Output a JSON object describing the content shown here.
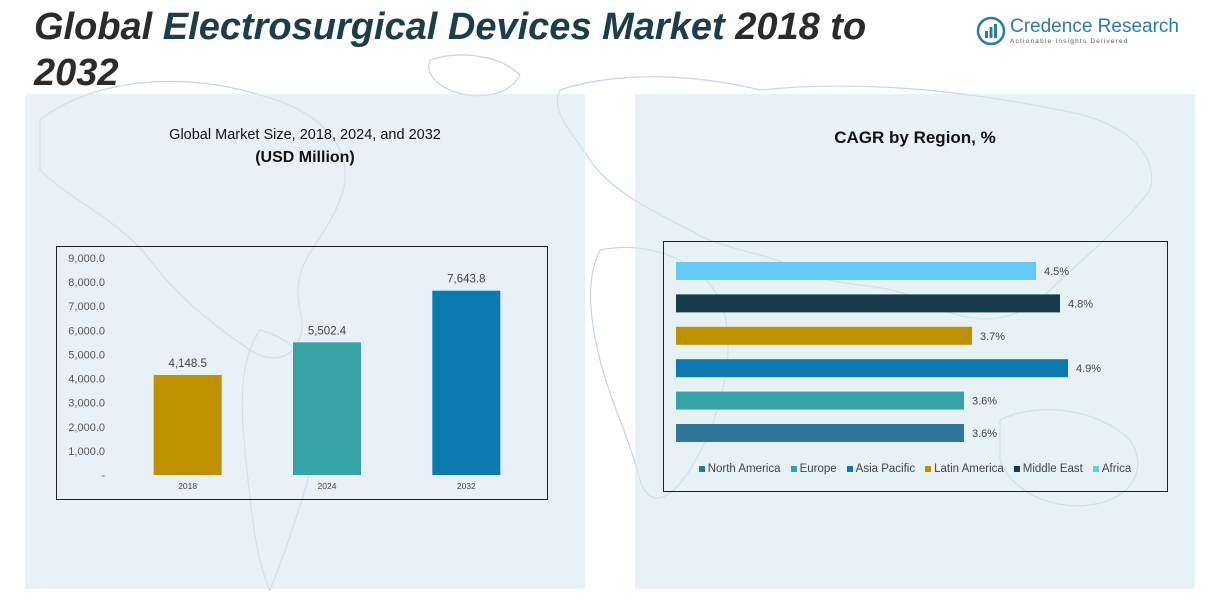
{
  "header": {
    "title_part1": "Global ",
    "title_part2": "Electrosurgical Devices Market",
    "title_part3": " 2018 to 2032"
  },
  "logo": {
    "name": "Credence Research",
    "tagline": "Actionable Insights Delivered",
    "icon": "bar-chart-logo-icon"
  },
  "colors": {
    "bar_2018": "#BF9000",
    "bar_2024": "#36A3A6",
    "bar_2032": "#0B7BAF",
    "north_america": "#2F7698",
    "europe": "#36A3A6",
    "asia_pacific": "#0B7BAF",
    "latin_america": "#BF9000",
    "middle_east": "#173A48",
    "africa": "#66CCF5"
  },
  "chart_data": [
    {
      "type": "bar",
      "title": "Global Market Size, 2018, 2024, and 2032",
      "subtitle": "(USD Million)",
      "categories": [
        "2018",
        "2024",
        "2032"
      ],
      "values": [
        4148.5,
        5502.4,
        7643.8
      ],
      "value_labels": [
        "4,148.5",
        "5,502.4",
        "7,643.8"
      ],
      "ylim": [
        0,
        9000
      ],
      "yticks": [
        0,
        1000,
        2000,
        3000,
        4000,
        5000,
        6000,
        7000,
        8000,
        9000
      ],
      "ytick_labels": [
        "-",
        "1,000.0",
        "2,000.0",
        "3,000.0",
        "4,000.0",
        "5,000.0",
        "6,000.0",
        "7,000.0",
        "8,000.0",
        "9,000.0"
      ],
      "grid": false
    },
    {
      "type": "bar",
      "orientation": "horizontal",
      "title": "CAGR by Region, %",
      "categories": [
        "Africa",
        "Middle East",
        "Latin America",
        "Asia Pacific",
        "Europe",
        "North America"
      ],
      "values": [
        4.5,
        4.8,
        3.7,
        4.9,
        3.6,
        3.6
      ],
      "value_labels": [
        "4.5%",
        "4.8%",
        "3.7%",
        "4.9%",
        "3.6%",
        "3.6%"
      ],
      "xlim": [
        0,
        5.0
      ],
      "legend": [
        "North America",
        "Europe",
        "Asia Pacific",
        "Latin America",
        "Middle East",
        "Africa"
      ],
      "legend_position": "bottom",
      "grid": false
    }
  ]
}
